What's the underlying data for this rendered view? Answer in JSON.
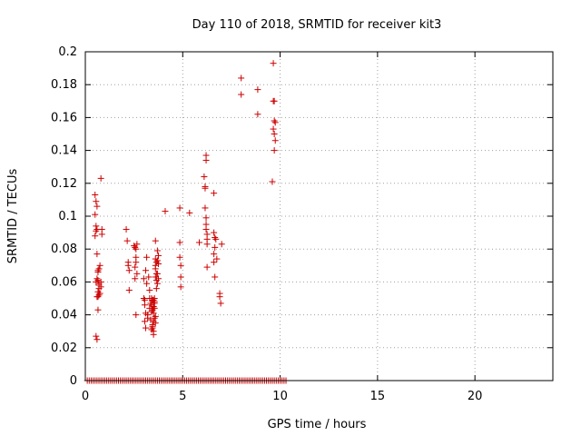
{
  "chart_data": {
    "type": "scatter",
    "title": "Day 110 of 2018, SRMTID for receiver kit3",
    "xlabel": "GPS time / hours",
    "ylabel": "SRMTID / TECUs",
    "xlim": [
      0,
      24
    ],
    "ylim": [
      0,
      0.2
    ],
    "xticks": [
      0,
      5,
      10,
      15,
      20
    ],
    "yticks": [
      0,
      0.02,
      0.04,
      0.06,
      0.08,
      0.1,
      0.12,
      0.14,
      0.16,
      0.18,
      0.2
    ],
    "grid": true,
    "marker": "plus",
    "color": "#cc0000",
    "series": [
      {
        "x": [
          0.5,
          0.55,
          0.6,
          0.5,
          0.55,
          0.6,
          0.55,
          0.5,
          0.6,
          0.65,
          0.6,
          0.55,
          0.7,
          0.65,
          0.7,
          0.6,
          0.65,
          0.55,
          0.6,
          0.65,
          0.7,
          0.75,
          0.65,
          0.7,
          0.8,
          0.85,
          0.85,
          0.8,
          0.8,
          0.75,
          0.7,
          0.65,
          2.1,
          2.15,
          2.2,
          2.2,
          2.25,
          2.25,
          2.5,
          2.55,
          2.6,
          2.6,
          2.55,
          2.65,
          2.6,
          2.65,
          2.6,
          2.55,
          3.0,
          3.0,
          3.05,
          3.05,
          3.05,
          3.1,
          3.1,
          3.1,
          3.15,
          3.15,
          3.2,
          3.2,
          3.25,
          3.3,
          3.3,
          3.35,
          3.4,
          3.4,
          3.45,
          3.45,
          3.45,
          3.5,
          3.5,
          3.5,
          3.5,
          3.55,
          3.55,
          3.55,
          3.6,
          3.6,
          3.6,
          3.6,
          3.6,
          3.65,
          3.65,
          3.65,
          3.7,
          3.7,
          3.7,
          3.75,
          3.75,
          3.75,
          3.6,
          3.5,
          3.45,
          3.4,
          3.35,
          3.3,
          3.55,
          3.6,
          3.5,
          3.45,
          3.65,
          3.7,
          3.55,
          3.5,
          3.4,
          4.1,
          4.85,
          4.85,
          4.85,
          4.9,
          4.9,
          4.9,
          5.35,
          5.85,
          6.1,
          6.15,
          6.15,
          6.15,
          6.2,
          6.2,
          6.2,
          6.2,
          6.2,
          6.25,
          6.25,
          6.25,
          6.25,
          6.6,
          6.6,
          6.6,
          6.6,
          6.65,
          6.65,
          6.65,
          6.7,
          6.75,
          6.9,
          6.9,
          6.95,
          7.0,
          8.0,
          8.0,
          8.85,
          8.85,
          9.6,
          9.65,
          9.65,
          9.65,
          9.7,
          9.7,
          9.7,
          9.75,
          9.75,
          9.7
        ],
        "y": [
          0.113,
          0.109,
          0.106,
          0.101,
          0.094,
          0.092,
          0.091,
          0.088,
          0.077,
          0.067,
          0.062,
          0.06,
          0.058,
          0.054,
          0.052,
          0.051,
          0.043,
          0.027,
          0.025,
          0.061,
          0.068,
          0.07,
          0.066,
          0.059,
          0.123,
          0.092,
          0.089,
          0.06,
          0.057,
          0.053,
          0.056,
          0.051,
          0.092,
          0.085,
          0.072,
          0.07,
          0.067,
          0.055,
          0.082,
          0.081,
          0.08,
          0.075,
          0.069,
          0.065,
          0.04,
          0.083,
          0.072,
          0.062,
          0.062,
          0.05,
          0.049,
          0.046,
          0.036,
          0.067,
          0.041,
          0.032,
          0.059,
          0.075,
          0.038,
          0.04,
          0.063,
          0.055,
          0.044,
          0.037,
          0.05,
          0.046,
          0.049,
          0.043,
          0.034,
          0.049,
          0.045,
          0.041,
          0.03,
          0.05,
          0.047,
          0.038,
          0.085,
          0.074,
          0.07,
          0.068,
          0.063,
          0.072,
          0.065,
          0.061,
          0.079,
          0.073,
          0.065,
          0.076,
          0.071,
          0.062,
          0.035,
          0.028,
          0.032,
          0.042,
          0.047,
          0.05,
          0.044,
          0.039,
          0.036,
          0.033,
          0.056,
          0.059,
          0.048,
          0.045,
          0.031,
          0.103,
          0.105,
          0.084,
          0.075,
          0.07,
          0.063,
          0.057,
          0.102,
          0.084,
          0.124,
          0.118,
          0.117,
          0.105,
          0.137,
          0.134,
          0.099,
          0.095,
          0.092,
          0.089,
          0.086,
          0.083,
          0.069,
          0.114,
          0.09,
          0.077,
          0.072,
          0.087,
          0.081,
          0.063,
          0.086,
          0.074,
          0.053,
          0.051,
          0.047,
          0.083,
          0.184,
          0.174,
          0.177,
          0.162,
          0.121,
          0.193,
          0.17,
          0.153,
          0.17,
          0.158,
          0.15,
          0.146,
          0.157,
          0.14
        ]
      },
      {
        "x": [
          0.1,
          0.2,
          0.3,
          0.4,
          0.5,
          0.6,
          0.7,
          0.8,
          0.9,
          1.0,
          1.1,
          1.2,
          1.3,
          1.4,
          1.5,
          1.6,
          1.7,
          1.8,
          1.9,
          2.0,
          2.1,
          2.2,
          2.3,
          2.4,
          2.5,
          2.6,
          2.7,
          2.8,
          2.9,
          3.0,
          3.1,
          3.2,
          3.3,
          3.4,
          3.5,
          3.6,
          3.7,
          3.8,
          3.9,
          4.0,
          4.1,
          4.2,
          4.3,
          4.4,
          4.5,
          4.6,
          4.7,
          4.8,
          4.9,
          5.0,
          5.1,
          5.2,
          5.3,
          5.4,
          5.5,
          5.6,
          5.7,
          5.8,
          5.9,
          6.0,
          6.1,
          6.2,
          6.3,
          6.4,
          6.5,
          6.6,
          6.7,
          6.8,
          6.9,
          7.0,
          7.1,
          7.2,
          7.3,
          7.4,
          7.5,
          7.6,
          7.7,
          7.8,
          7.9,
          8.0,
          8.1,
          8.2,
          8.3,
          8.4,
          8.5,
          8.6,
          8.7,
          8.8,
          8.9,
          9.0,
          9.1,
          9.2,
          9.3,
          9.4,
          9.5,
          9.6,
          9.7,
          9.8,
          9.9,
          10.0,
          10.1,
          10.2,
          10.3
        ],
        "y": [
          0,
          0,
          0,
          0,
          0,
          0,
          0,
          0,
          0,
          0,
          0,
          0,
          0,
          0,
          0,
          0,
          0,
          0,
          0,
          0,
          0,
          0,
          0,
          0,
          0,
          0,
          0,
          0,
          0,
          0,
          0,
          0,
          0,
          0,
          0,
          0,
          0,
          0,
          0,
          0,
          0,
          0,
          0,
          0,
          0,
          0,
          0,
          0,
          0,
          0,
          0,
          0,
          0,
          0,
          0,
          0,
          0,
          0,
          0,
          0,
          0,
          0,
          0,
          0,
          0,
          0,
          0,
          0,
          0,
          0,
          0,
          0,
          0,
          0,
          0,
          0,
          0,
          0,
          0,
          0,
          0,
          0,
          0,
          0,
          0,
          0,
          0,
          0,
          0,
          0,
          0,
          0,
          0,
          0,
          0,
          0,
          0,
          0,
          0,
          0,
          0,
          0,
          0
        ]
      }
    ]
  }
}
